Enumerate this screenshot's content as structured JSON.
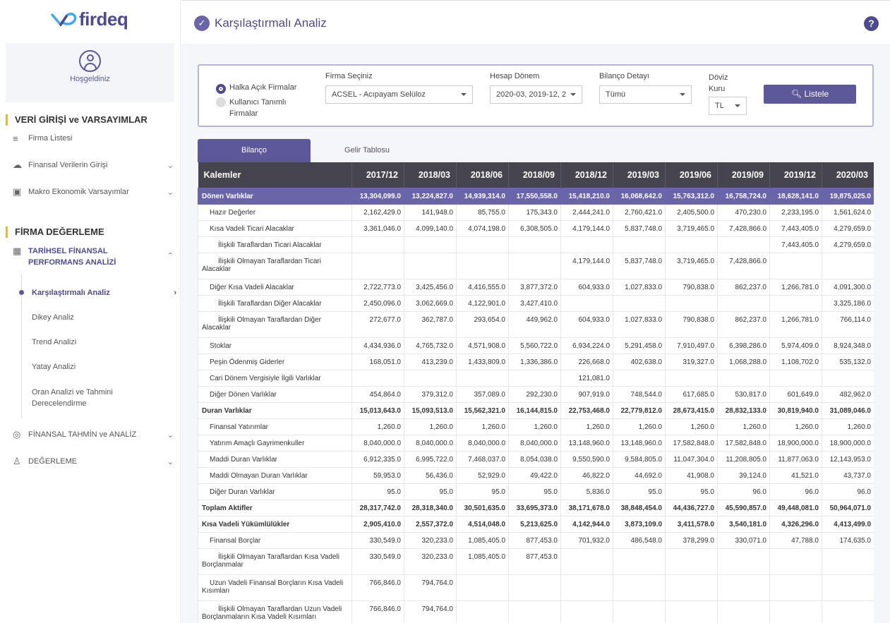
{
  "brand": {
    "name": "firdeq",
    "accent": "#5c5899",
    "highlight": "#f0b63c"
  },
  "sidebar": {
    "welcome": "Hoşgeldiniz",
    "section1": "VERİ GİRİŞİ ve VARSAYIMLAR",
    "firma_listesi": "Firma Listesi",
    "finansal_veri": "Finansal Verilerin Girişi",
    "makro": "Makro Ekonomik Varsayımlar",
    "section2": "FİRMA DEĞERLEME",
    "tarihsel": "TARİHSEL FİNANSAL PERFORMANS ANALİZİ",
    "sub": [
      "Karşılaştırmalı Analiz",
      "Dikey Analiz",
      "Trend Analizi",
      "Yatay Analizi",
      "Oran Analizi ve Tahmini Derecelendirme"
    ],
    "finansal_tahmin": "FİNANSAL TAHMİN ve ANALİZ",
    "degerleme": "DEĞERLEME"
  },
  "header": {
    "title": "Karşılaştırmalı Analiz",
    "help": "?"
  },
  "filter": {
    "radio1": "Halka Açık Firmalar",
    "radio2": "Kullanıcı Tanımlı Firmalar",
    "firma_label": "Firma Seçiniz",
    "firma_value": "ACSEL - Acıpayam Selüloz",
    "donem_label": "Hesap Dönem",
    "donem_value": "2020-03, 2019-12, 2",
    "detay_label": "Bilanço Detayı",
    "detay_value": "Tümü",
    "doviz_label": "Döviz Kuru",
    "doviz_value": "TL",
    "button": "Listele"
  },
  "tabs": [
    "Bilanço",
    "Gelir Tablosu"
  ],
  "table": {
    "headers": [
      "Kalemler",
      "2017/12",
      "2018/03",
      "2018/06",
      "2018/09",
      "2018/12",
      "2019/03",
      "2019/06",
      "2019/09",
      "2019/12",
      "2020/03"
    ],
    "rows": [
      {
        "label": "Dönen Varlıklar",
        "style": "hl",
        "values": [
          "13,304,099.0",
          "13,224,827.0",
          "14,939,314.0",
          "17,550,558.0",
          "15,418,210.0",
          "16,068,642.0",
          "15,763,312.0",
          "16,758,724.0",
          "18,628,141.0",
          "19,875,025.0"
        ]
      },
      {
        "label": "Hazır Değerler",
        "style": "ind1",
        "values": [
          "2,162,429.0",
          "141,948.0",
          "85,755.0",
          "175,343.0",
          "2,444,241.0",
          "2,760,421.0",
          "2,405,500.0",
          "470,230.0",
          "2,233,195.0",
          "1,561,624.0"
        ]
      },
      {
        "label": "Kısa Vadeli Ticari Alacaklar",
        "style": "ind1",
        "values": [
          "3,361,046.0",
          "4,099,140.0",
          "4,074,198.0",
          "6,308,505.0",
          "4,179,144.0",
          "5,837,748.0",
          "3,719,465.0",
          "7,428,866.0",
          "7,443,405.0",
          "4,279,659.0"
        ]
      },
      {
        "label": "İlişkili Taraflardan Ticari Alacaklar",
        "style": "ind2",
        "values": [
          "",
          "",
          "",
          "",
          "",
          "",
          "",
          "",
          "7,443,405.0",
          "4,279,659.0"
        ]
      },
      {
        "label": "İlişkili Olmayan Taraflardan Ticari Alacaklar",
        "style": "ind2w tall",
        "values": [
          "",
          "",
          "",
          "",
          "4,179,144.0",
          "5,837,748.0",
          "3,719,465.0",
          "7,428,866.0",
          "",
          ""
        ]
      },
      {
        "label": "Diğer Kısa Vadeli Alacaklar",
        "style": "ind1",
        "values": [
          "2,722,773.0",
          "3,425,456.0",
          "4,416,555.0",
          "3,877,372.0",
          "604,933.0",
          "1,027,833.0",
          "790,838.0",
          "862,237.0",
          "1,266,781.0",
          "4,091,300.0"
        ]
      },
      {
        "label": "İlişkili Taraflardan Diğer Alacaklar",
        "style": "ind2",
        "values": [
          "2,450,096.0",
          "3,062,669.0",
          "4,122,901.0",
          "3,427,410.0",
          "",
          "",
          "",
          "",
          "",
          "3,325,186.0"
        ]
      },
      {
        "label": "İlişkili Olmayan Taraflardan Diğer Alacaklar",
        "style": "ind2w tall",
        "values": [
          "272,677.0",
          "362,787.0",
          "293,654.0",
          "449,962.0",
          "604,933.0",
          "1,027,833.0",
          "790,838.0",
          "862,237.0",
          "1,266,781.0",
          "766,114.0"
        ]
      },
      {
        "label": "Stoklar",
        "style": "ind1",
        "values": [
          "4,434,936.0",
          "4,765,732.0",
          "4,571,908.0",
          "5,560,722.0",
          "6,934,224.0",
          "5,291,458.0",
          "7,910,497.0",
          "6,398,286.0",
          "5,974,409.0",
          "8,924,348.0"
        ]
      },
      {
        "label": "Peşin Ödenmiş Giderler",
        "style": "ind1",
        "values": [
          "168,051.0",
          "413,239.0",
          "1,433,809.0",
          "1,336,386.0",
          "226,668.0",
          "402,638.0",
          "319,327.0",
          "1,068,288.0",
          "1,108,702.0",
          "535,132.0"
        ]
      },
      {
        "label": "Cari Dönem Vergisiyle İlgili Varlıklar",
        "style": "ind1",
        "values": [
          "",
          "",
          "",
          "",
          "121,081.0",
          "",
          "",
          "",
          "",
          ""
        ]
      },
      {
        "label": "Diğer Dönen Varlıklar",
        "style": "ind1",
        "values": [
          "454,864.0",
          "379,312.0",
          "357,089.0",
          "292,230.0",
          "907,919.0",
          "748,544.0",
          "617,685.0",
          "530,817.0",
          "601,649.0",
          "482,962.0"
        ]
      },
      {
        "label": "Duran Varlıklar",
        "style": "bold",
        "values": [
          "15,013,643.0",
          "15,093,513.0",
          "15,562,321.0",
          "16,144,815.0",
          "22,753,468.0",
          "22,779,812.0",
          "28,673,415.0",
          "28,832,133.0",
          "30,819,940.0",
          "31,089,046.0"
        ]
      },
      {
        "label": "Finansal Yatırımlar",
        "style": "ind1",
        "values": [
          "1,260.0",
          "1,260.0",
          "1,260.0",
          "1,260.0",
          "1,260.0",
          "1,260.0",
          "1,260.0",
          "1,260.0",
          "1,260.0",
          "1,260.0"
        ]
      },
      {
        "label": "Yatırım Amaçlı Gayrimenkuller",
        "style": "ind1",
        "values": [
          "8,040,000.0",
          "8,040,000.0",
          "8,040,000.0",
          "8,040,000.0",
          "13,148,960.0",
          "13,148,960.0",
          "17,582,848.0",
          "17,582,848.0",
          "18,900,000.0",
          "18,900,000.0"
        ]
      },
      {
        "label": "Maddi Duran Varlıklar",
        "style": "ind1",
        "values": [
          "6,912,335.0",
          "6,995,722.0",
          "7,468,037.0",
          "8,054,038.0",
          "9,550,590.0",
          "9,584,805.0",
          "11,047,304.0",
          "11,208,805.0",
          "11,877,063.0",
          "12,143,953.0"
        ]
      },
      {
        "label": "Maddi Olmayan Duran Varlıklar",
        "style": "ind1",
        "values": [
          "59,953.0",
          "56,436.0",
          "52,929.0",
          "49,422.0",
          "46,822.0",
          "44,692.0",
          "41,908.0",
          "39,124.0",
          "41,521.0",
          "43,737.0"
        ]
      },
      {
        "label": "Diğer Duran Varlıklar",
        "style": "ind1",
        "values": [
          "95.0",
          "95.0",
          "95.0",
          "95.0",
          "5,836.0",
          "95.0",
          "95.0",
          "96.0",
          "96.0",
          "96.0"
        ]
      },
      {
        "label": "Toplam Aktifler",
        "style": "bold",
        "values": [
          "28,317,742.0",
          "28,318,340.0",
          "30,501,635.0",
          "33,695,373.0",
          "38,171,678.0",
          "38,848,454.0",
          "44,436,727.0",
          "45,590,857.0",
          "49,448,081.0",
          "50,964,071.0"
        ]
      },
      {
        "label": "Kısa Vadeli Yükümlülükler",
        "style": "bold",
        "values": [
          "2,905,410.0",
          "2,557,372.0",
          "4,514,048.0",
          "5,213,625.0",
          "4,142,944.0",
          "3,873,109.0",
          "3,411,578.0",
          "3,540,181.0",
          "4,326,296.0",
          "4,413,499.0"
        ]
      },
      {
        "label": "Finansal Borçlar",
        "style": "ind1",
        "values": [
          "330,549.0",
          "320,233.0",
          "1,085,405.0",
          "877,453.0",
          "701,932.0",
          "486,548.0",
          "378,299.0",
          "330,071.0",
          "47,788.0",
          "174,635.0"
        ]
      },
      {
        "label": "İlişkili Olmayan Taraflardan Kısa Vadeli Borçlanmalar",
        "style": "ind2w tall",
        "values": [
          "330,549.0",
          "320,233.0",
          "1,085,405.0",
          "877,453.0",
          "",
          "",
          "",
          "",
          "",
          ""
        ]
      },
      {
        "label": "Uzun Vadeli Finansal Borçların Kısa Vadeli Kısımları",
        "style": "ind1w tall",
        "values": [
          "766,846.0",
          "794,764.0",
          "",
          "",
          "",
          "",
          "",
          "",
          "",
          ""
        ]
      },
      {
        "label": "İlişkili Olmayan Taraflardan Uzun Vadeli Borçlanmaların Kısa Vadeli Kısımları",
        "style": "ind2w tall",
        "values": [
          "766,846.0",
          "794,764.0",
          "",
          "",
          "",
          "",
          "",
          "",
          "",
          ""
        ]
      }
    ]
  }
}
